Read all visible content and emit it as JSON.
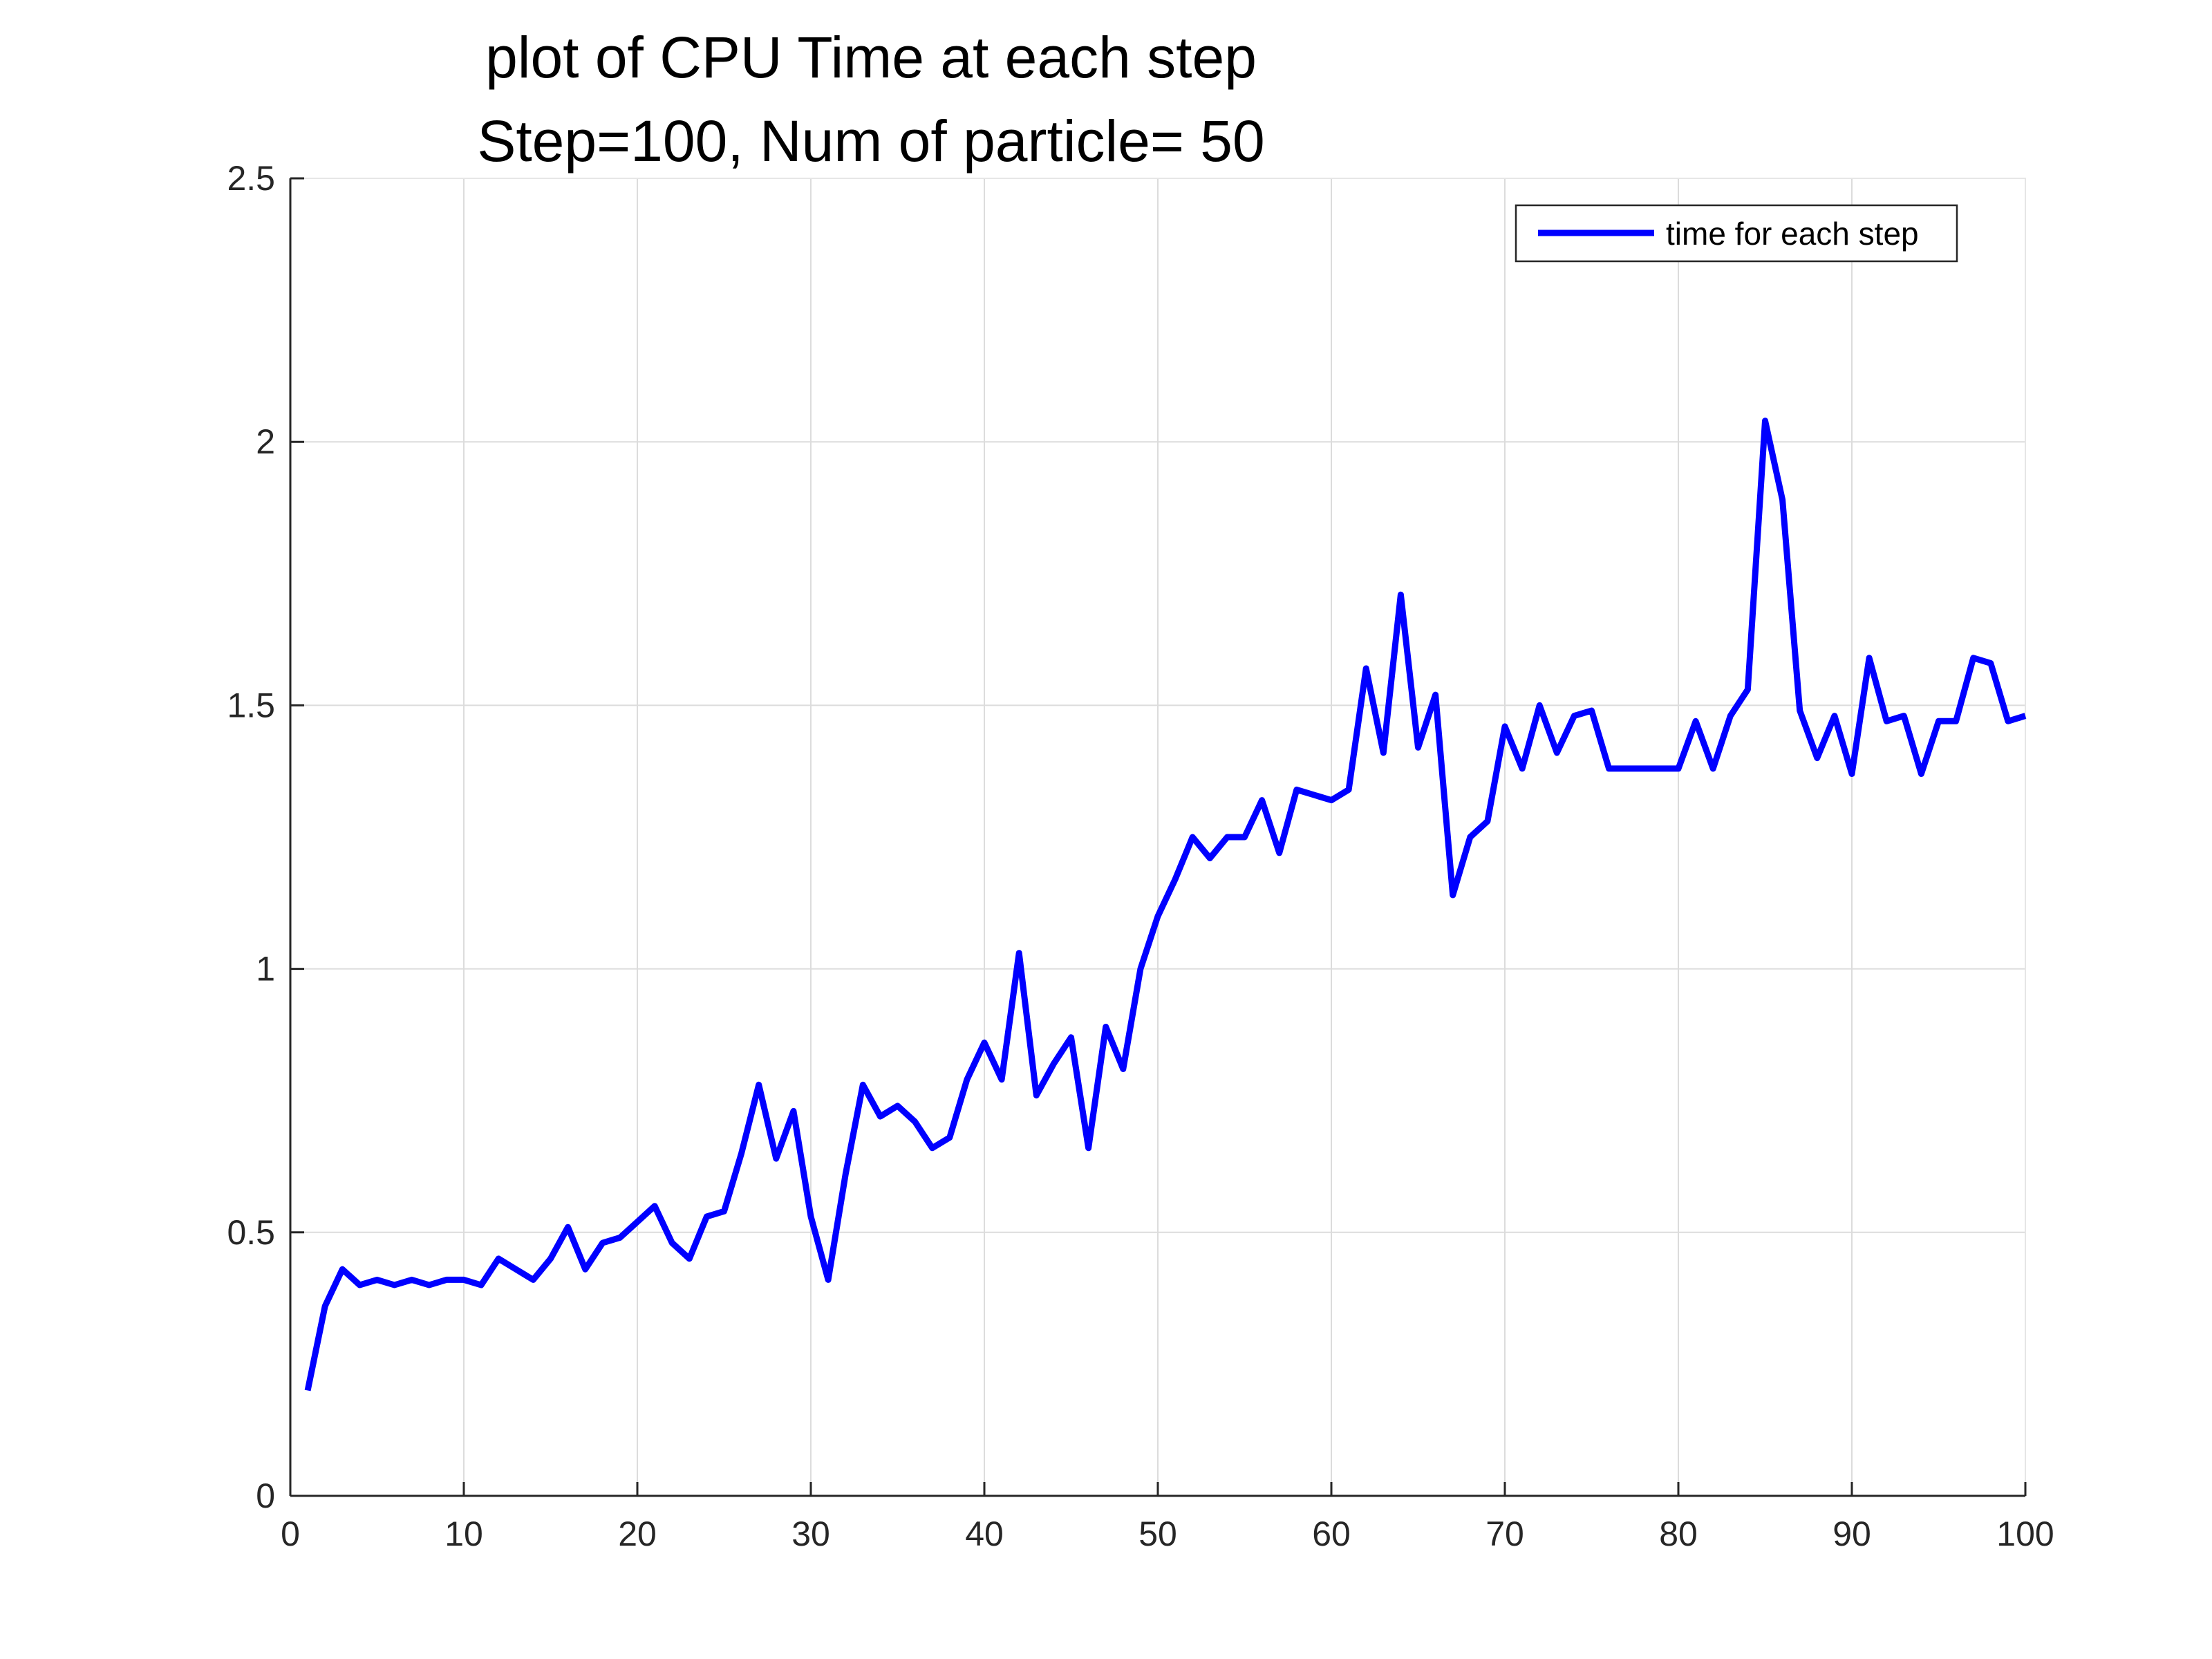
{
  "chart_data": {
    "type": "line",
    "title": "plot of CPU Time at each step",
    "subtitle": "Step=100, Num of particle= 50",
    "xlabel": "",
    "ylabel": "",
    "xlim": [
      0,
      100
    ],
    "ylim": [
      0,
      2.5
    ],
    "xticks": [
      "0",
      "10",
      "20",
      "30",
      "40",
      "50",
      "60",
      "70",
      "80",
      "90",
      "100"
    ],
    "yticks": [
      "0",
      "0.5",
      "1",
      "1.5",
      "2",
      "2.5"
    ],
    "grid": true,
    "legend_position": "top-right",
    "series": [
      {
        "name": "time for each step",
        "color": "#0000ff",
        "x": [
          1,
          2,
          3,
          4,
          5,
          6,
          7,
          8,
          9,
          10,
          11,
          12,
          13,
          14,
          15,
          16,
          17,
          18,
          19,
          20,
          21,
          22,
          23,
          24,
          25,
          26,
          27,
          28,
          29,
          30,
          31,
          32,
          33,
          34,
          35,
          36,
          37,
          38,
          39,
          40,
          41,
          42,
          43,
          44,
          45,
          46,
          47,
          48,
          49,
          50,
          51,
          52,
          53,
          54,
          55,
          56,
          57,
          58,
          59,
          60,
          61,
          62,
          63,
          64,
          65,
          66,
          67,
          68,
          69,
          70,
          71,
          72,
          73,
          74,
          75,
          76,
          77,
          78,
          79,
          80,
          81,
          82,
          83,
          84,
          85,
          86,
          87,
          88,
          89,
          90,
          91,
          92,
          93,
          94,
          95,
          96,
          97,
          98,
          99,
          100
        ],
        "y": [
          0.2,
          0.36,
          0.43,
          0.4,
          0.41,
          0.4,
          0.41,
          0.4,
          0.41,
          0.41,
          0.4,
          0.45,
          0.43,
          0.41,
          0.45,
          0.51,
          0.43,
          0.48,
          0.49,
          0.52,
          0.55,
          0.48,
          0.45,
          0.53,
          0.54,
          0.65,
          0.78,
          0.64,
          0.73,
          0.53,
          0.41,
          0.61,
          0.78,
          0.72,
          0.74,
          0.71,
          0.66,
          0.68,
          0.79,
          0.86,
          0.79,
          1.03,
          0.76,
          0.82,
          0.87,
          0.66,
          0.89,
          0.81,
          1.0,
          1.1,
          1.17,
          1.25,
          1.21,
          1.25,
          1.25,
          1.32,
          1.22,
          1.34,
          1.33,
          1.32,
          1.34,
          1.57,
          1.41,
          1.71,
          1.42,
          1.52,
          1.14,
          1.25,
          1.28,
          1.46,
          1.38,
          1.5,
          1.41,
          1.48,
          1.49,
          1.38,
          1.38,
          1.38,
          1.38,
          1.38,
          1.47,
          1.38,
          1.48,
          1.53,
          2.04,
          1.89,
          1.49,
          1.4,
          1.48,
          1.37,
          1.59,
          1.47,
          1.48,
          1.37,
          1.47,
          1.47,
          1.59,
          1.58,
          1.47,
          1.48
        ]
      }
    ]
  }
}
